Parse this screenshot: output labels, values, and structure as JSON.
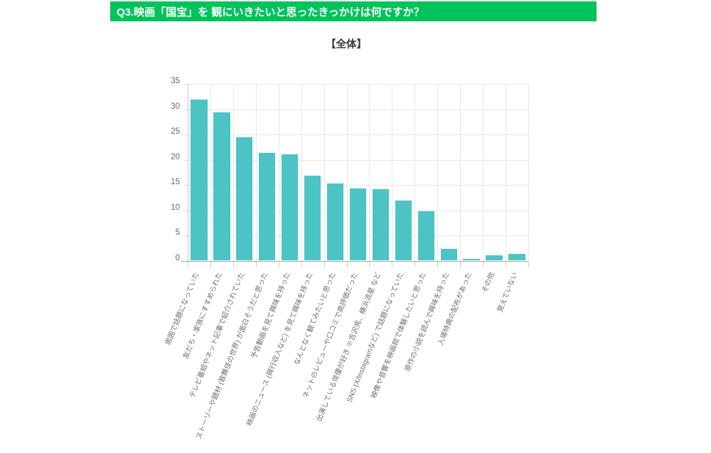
{
  "header": {
    "question_label": "Q3.映画「国宝」を 観にいきたいと思ったきっかけは何ですか？",
    "banner_color": "#00c35b"
  },
  "subtitle": "【全体】",
  "chart_data": {
    "type": "bar",
    "title": "【全体】",
    "categories": [
      "周囲で話題になっていた",
      "友だち・家族にすすめられた",
      "テレビ番組やネット記事で紹介されていた",
      "ストーリーや題材 (歌舞伎の世界) が面白そうだと思った",
      "予告動画を見て興味を持った",
      "映画のニュース (興行収入など) を見て興味を持った",
      "なんとなく観てみたいと思った",
      "ネットのレビューや口コミで高評価だった",
      "出演している俳優が好き ※吉沢亮、横浜流星 など",
      "SNS (X/Instagramなど) で話題になっていた",
      "映像や音響を映画館で体験したいと思った",
      "原作の小説を読んで興味を持った",
      "入場特典の配布があった",
      "その他",
      "覚えていない"
    ],
    "values": [
      31.9,
      29.4,
      24.4,
      21.4,
      21.1,
      16.9,
      15.3,
      14.3,
      14.1,
      11.9,
      9.8,
      2.3,
      0.4,
      1.0,
      1.3
    ],
    "bar_color": "#4cc4c5",
    "xlabel": "",
    "ylabel": "",
    "ylim": [
      0,
      35
    ],
    "yticks": [
      0,
      5,
      10,
      15,
      20,
      25,
      30,
      35
    ],
    "grid": true,
    "legend": false
  }
}
